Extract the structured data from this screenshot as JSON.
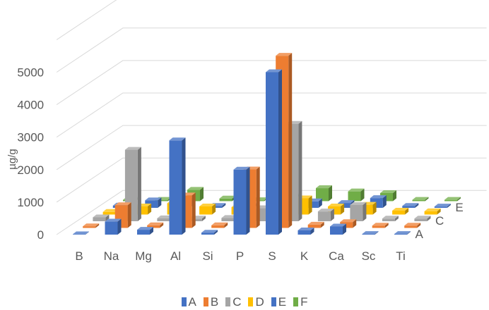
{
  "chart_data": {
    "type": "bar3d",
    "title": "",
    "ylabel": "µg/g",
    "ylim": [
      0,
      6000
    ],
    "yticks": [
      "0",
      "1000",
      "2000",
      "3000",
      "4000",
      "5000"
    ],
    "categories": [
      "B",
      "Na",
      "Mg",
      "Al",
      "Si",
      "P",
      "S",
      "K",
      "Ca",
      "Sc",
      "Ti"
    ],
    "depth_labels": [
      "A",
      "C",
      "E"
    ],
    "legend_position": "bottom",
    "grid": true,
    "series": [
      {
        "name": "A",
        "color": "#4472C4",
        "values": [
          10,
          400,
          150,
          2900,
          60,
          2000,
          5000,
          130,
          250,
          20,
          20
        ]
      },
      {
        "name": "B",
        "color": "#ED7D31",
        "values": [
          50,
          700,
          80,
          1000,
          80,
          1800,
          5300,
          100,
          180,
          70,
          70
        ]
      },
      {
        "name": "C",
        "color": "#A5A5A5",
        "values": [
          120,
          2200,
          90,
          80,
          100,
          400,
          3000,
          300,
          500,
          80,
          80
        ]
      },
      {
        "name": "D",
        "color": "#FFC000",
        "values": [
          80,
          250,
          350,
          250,
          230,
          40,
          500,
          250,
          300,
          120,
          100
        ]
      },
      {
        "name": "E",
        "color": "#4472C4",
        "values": [
          70,
          230,
          250,
          60,
          70,
          30,
          200,
          150,
          300,
          60,
          40
        ]
      },
      {
        "name": "F",
        "color": "#70AD47",
        "values": [
          40,
          40,
          350,
          80,
          30,
          150,
          400,
          300,
          250,
          40,
          40
        ]
      }
    ]
  }
}
